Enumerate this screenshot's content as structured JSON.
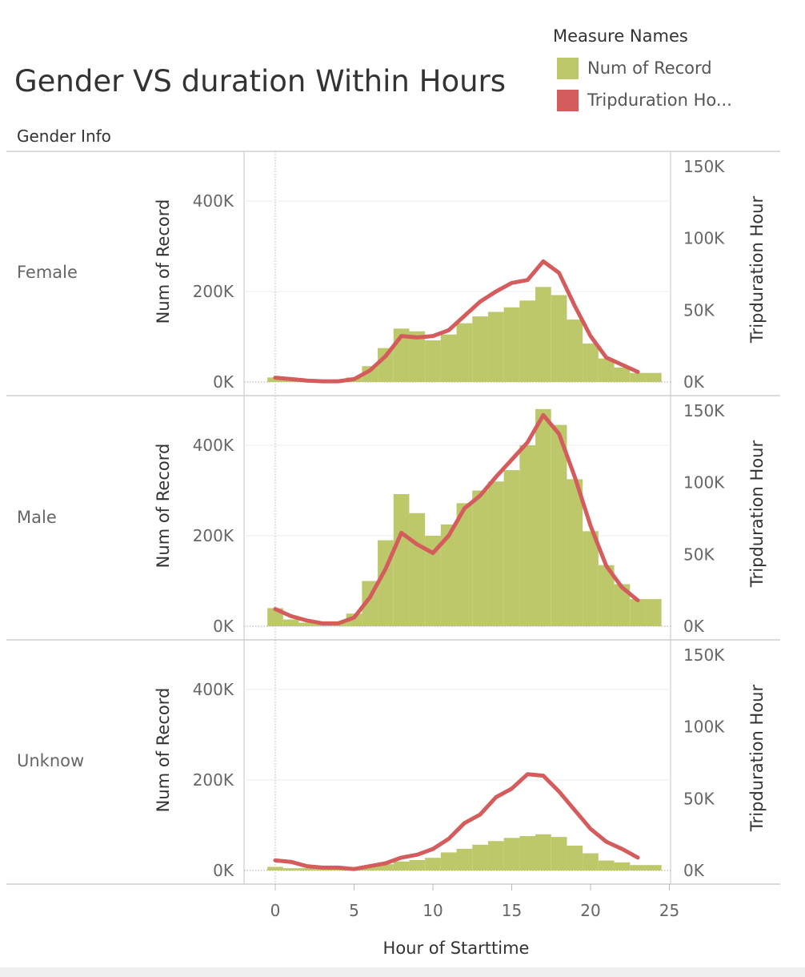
{
  "title": "Gender VS duration Within Hours",
  "legend": {
    "title": "Measure Names",
    "items": [
      {
        "label": "Num of Record",
        "color": "#bdc86a"
      },
      {
        "label": "Tripduration Ho...",
        "color": "#d45c5c"
      }
    ]
  },
  "row_header": "Gender Info",
  "x_title": "Hour of Starttime",
  "chart_data": {
    "type": "bar+line dual-axis small multiples",
    "x_label": "Hour of Starttime",
    "x_ticks": [
      0,
      5,
      10,
      15,
      20,
      25
    ],
    "left_axis": {
      "label": "Num of Record",
      "ticks": [
        "0K",
        "200K",
        "400K"
      ],
      "range": [
        0,
        500000
      ]
    },
    "right_axis": {
      "label": "Tripduration Hour",
      "ticks": [
        "0K",
        "50K",
        "100K",
        "150K"
      ],
      "range": [
        0,
        150000
      ]
    },
    "colors": {
      "bars": "#bdc86a",
      "line": "#d45c5c"
    },
    "panels": [
      {
        "label": "Female",
        "num_of_record": [
          10000,
          4000,
          2000,
          2000,
          3000,
          10000,
          35000,
          75000,
          118000,
          112000,
          92000,
          105000,
          130000,
          145000,
          155000,
          165000,
          180000,
          210000,
          192000,
          138000,
          85000,
          52000,
          32000,
          20000,
          20000
        ],
        "tripduration_hour": [
          3000,
          2000,
          1000,
          500,
          500,
          2000,
          8000,
          18000,
          32000,
          31000,
          32000,
          36000,
          46000,
          56000,
          63000,
          69000,
          71000,
          84000,
          76000,
          53000,
          32000,
          17000,
          12000,
          7000
        ]
      },
      {
        "label": "Male",
        "num_of_record": [
          40000,
          15000,
          8000,
          5000,
          8000,
          28000,
          100000,
          190000,
          292000,
          250000,
          200000,
          225000,
          272000,
          300000,
          320000,
          345000,
          400000,
          480000,
          445000,
          325000,
          210000,
          135000,
          93000,
          60000,
          60000
        ],
        "tripduration_hour": [
          12000,
          7000,
          4000,
          2000,
          2000,
          6000,
          20000,
          40000,
          65000,
          57000,
          51000,
          63000,
          82000,
          91000,
          104000,
          116000,
          128000,
          147000,
          134000,
          104000,
          70000,
          42000,
          27000,
          18000
        ]
      },
      {
        "label": "Unknow",
        "num_of_record": [
          8000,
          5000,
          5000,
          4000,
          5000,
          5000,
          10000,
          14000,
          20000,
          23000,
          28000,
          40000,
          48000,
          57000,
          65000,
          72000,
          76000,
          80000,
          74000,
          55000,
          38000,
          22000,
          18000,
          12000,
          12000
        ],
        "tripduration_hour": [
          7000,
          6000,
          3000,
          2000,
          2000,
          1000,
          3000,
          5000,
          9000,
          11000,
          15000,
          22000,
          33000,
          39000,
          51000,
          57000,
          67000,
          66000,
          55000,
          42000,
          29000,
          20000,
          15000,
          9000
        ]
      }
    ]
  }
}
